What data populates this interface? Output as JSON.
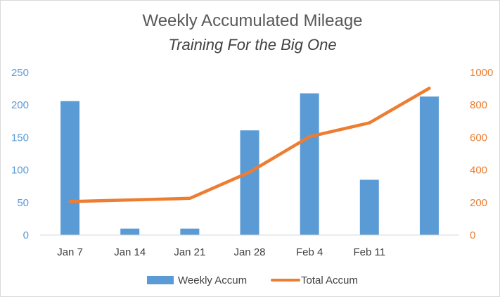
{
  "chart_data": {
    "type": "bar+line",
    "title": "Weekly Accumulated Mileage",
    "subtitle": "Training For the Big One",
    "categories": [
      "Jan 7",
      "Jan 14",
      "Jan 21",
      "Jan 28",
      "Feb 4",
      "Feb 11",
      ""
    ],
    "series": [
      {
        "name": "Weekly Accum",
        "type": "bar",
        "axis": "left",
        "color": "#5b9bd5",
        "values": [
          206,
          10,
          10,
          161,
          218,
          85,
          213
        ]
      },
      {
        "name": "Total Accum",
        "type": "line",
        "axis": "right",
        "color": "#ed7d31",
        "values": [
          206,
          216,
          226,
          387,
          605,
          690,
          903
        ]
      }
    ],
    "ylim_left": [
      0,
      250
    ],
    "yticks_left": [
      "0",
      "50",
      "100",
      "150",
      "200",
      "250"
    ],
    "ylim_right": [
      0,
      1000
    ],
    "yticks_right": [
      "0",
      "200",
      "400",
      "600",
      "800",
      "1000"
    ],
    "left_axis_color": "#5b9bd5",
    "right_axis_color": "#ed7d31",
    "gridlines": false,
    "legend_position": "bottom"
  }
}
